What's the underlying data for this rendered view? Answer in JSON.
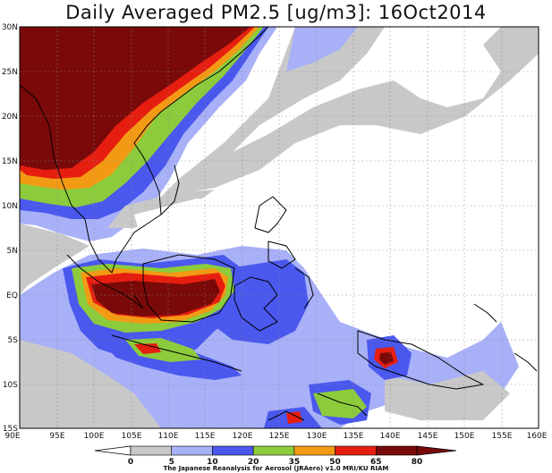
{
  "title": "Daily Averaged PM2.5 [ug/m3]: 16Oct2014",
  "footer": "The Japanese Reanalysis for Aerosol (JRAero) v1.0 MRI/KU RIAM",
  "lat_labels": [
    "30N",
    "25N",
    "20N",
    "15N",
    "10N",
    "5N",
    "EQ",
    "5S",
    "10S",
    "15S"
  ],
  "lon_labels": [
    "90E",
    "95E",
    "100E",
    "105E",
    "110E",
    "115E",
    "120E",
    "125E",
    "130E",
    "135E",
    "140E",
    "145E",
    "150E",
    "155E",
    "160E"
  ],
  "colorbar": {
    "thresholds": [
      "0",
      "5",
      "10",
      "20",
      "35",
      "50",
      "65",
      "80"
    ],
    "colors": [
      "#ffffff",
      "#c8c8c8",
      "#a8b0f8",
      "#4a58ee",
      "#8ccc3c",
      "#f39a14",
      "#e61e10",
      "#7a0a0a"
    ]
  }
}
